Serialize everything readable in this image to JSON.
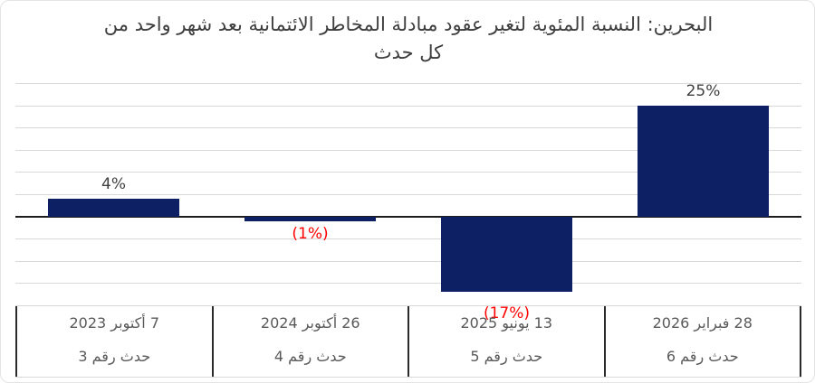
{
  "chart_data": {
    "type": "bar",
    "title": "البحرين: النسبة المئوية لتغير عقود مبادلة المخاطر الائتمانية بعد شهر واحد من كل حدث",
    "categories": [
      {
        "date": "7 أكتوبر 2023",
        "event": "حدث رقم 3"
      },
      {
        "date": "26 أكتوبر 2024",
        "event": "حدث رقم 4"
      },
      {
        "date": "13 يونيو 2025",
        "event": "حدث رقم 5"
      },
      {
        "date": "28 فبراير 2026",
        "event": "حدث رقم 6"
      }
    ],
    "values": [
      4,
      -1,
      -17,
      25
    ],
    "data_labels": [
      "4%",
      "(1%)",
      "(17%)",
      "25%"
    ],
    "data_label_colors": [
      "#404040",
      "#ff0000",
      "#ff0000",
      "#404040"
    ],
    "xlabel": "",
    "ylabel": "",
    "ylim": [
      -20,
      30
    ],
    "gridline_step": 5,
    "grid": true,
    "legend": false,
    "bar_color": "#0d2063"
  },
  "colors": {
    "gridline": "#d9d9d9",
    "zero_line": "#1c1c1c",
    "axis_text": "#595959",
    "title_text": "#3d3d3d",
    "divider": "#2a2a2a",
    "negative_label": "#ff0000",
    "positive_label": "#404040"
  }
}
